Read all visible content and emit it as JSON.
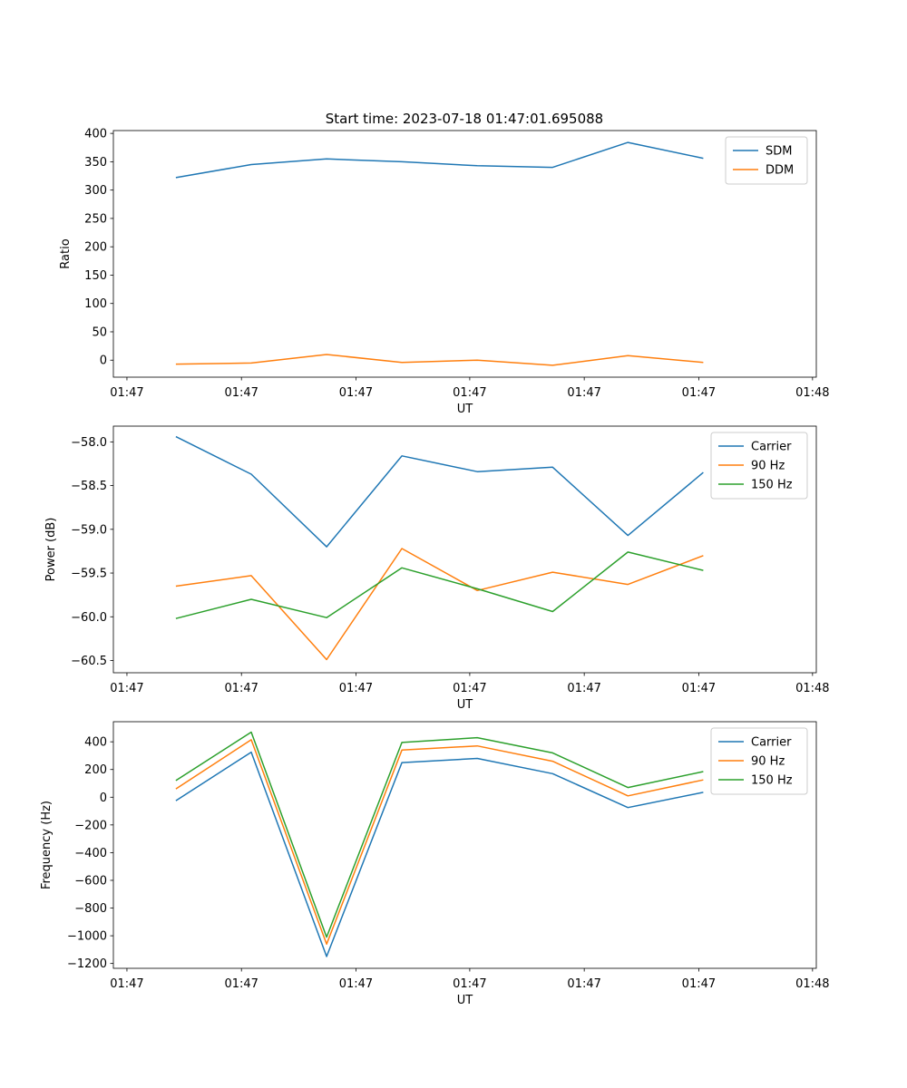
{
  "title": "Start time: 2023-07-18 01:47:01.695088",
  "colors": {
    "blue": "#1f77b4",
    "orange": "#ff7f0e",
    "green": "#2ca02c",
    "axis": "#000000",
    "legend_border": "#cccccc"
  },
  "chart_data": [
    {
      "type": "line",
      "title": "Start time: 2023-07-18 01:47:01.695088",
      "xlabel": "UT",
      "ylabel": "Ratio",
      "x": [
        1,
        2,
        3,
        4,
        5,
        6,
        7,
        8
      ],
      "xlim": [
        0.17,
        9.5
      ],
      "ylim": [
        -30,
        405
      ],
      "yticks": [
        0,
        50,
        100,
        150,
        200,
        250,
        300,
        350,
        400
      ],
      "ytick_labels": [
        "0",
        "50",
        "100",
        "150",
        "200",
        "250",
        "300",
        "350",
        "400"
      ],
      "xticks": [
        0.35,
        1.87,
        3.39,
        4.9,
        6.42,
        7.94,
        9.45
      ],
      "xtick_labels": [
        "01:47",
        "01:47",
        "01:47",
        "01:47",
        "01:47",
        "01:47",
        "01:48"
      ],
      "legend_position": "upper right",
      "series": [
        {
          "name": "SDM",
          "color": "#1f77b4",
          "values": [
            322,
            345,
            355,
            350,
            343,
            340,
            384,
            356
          ]
        },
        {
          "name": "DDM",
          "color": "#ff7f0e",
          "values": [
            -7,
            -5,
            10,
            -4,
            0,
            -9,
            8,
            -4
          ]
        }
      ]
    },
    {
      "type": "line",
      "title": "",
      "xlabel": "UT",
      "ylabel": "Power (dB)",
      "x": [
        1,
        2,
        3,
        4,
        5,
        6,
        7,
        8
      ],
      "xlim": [
        0.17,
        9.5
      ],
      "ylim": [
        -60.64,
        -57.82
      ],
      "yticks": [
        -60.5,
        -60.0,
        -59.5,
        -59.0,
        -58.5,
        -58.0
      ],
      "ytick_labels": [
        "−60.5",
        "−60.0",
        "−59.5",
        "−59.0",
        "−58.5",
        "−58.0"
      ],
      "xticks": [
        0.35,
        1.87,
        3.39,
        4.9,
        6.42,
        7.94,
        9.45
      ],
      "xtick_labels": [
        "01:47",
        "01:47",
        "01:47",
        "01:47",
        "01:47",
        "01:47",
        "01:48"
      ],
      "legend_position": "upper right",
      "series": [
        {
          "name": "Carrier",
          "color": "#1f77b4",
          "values": [
            -57.94,
            -58.37,
            -59.2,
            -58.16,
            -58.34,
            -58.29,
            -59.07,
            -58.35
          ]
        },
        {
          "name": "90 Hz",
          "color": "#ff7f0e",
          "values": [
            -59.65,
            -59.53,
            -60.49,
            -59.22,
            -59.7,
            -59.49,
            -59.63,
            -59.3
          ]
        },
        {
          "name": "150 Hz",
          "color": "#2ca02c",
          "values": [
            -60.02,
            -59.8,
            -60.01,
            -59.44,
            -59.68,
            -59.94,
            -59.26,
            -59.47
          ]
        }
      ]
    },
    {
      "type": "line",
      "title": "",
      "xlabel": "UT",
      "ylabel": "Frequency (Hz)",
      "x": [
        1,
        2,
        3,
        4,
        5,
        6,
        7,
        8
      ],
      "xlim": [
        0.17,
        9.5
      ],
      "ylim": [
        -1235,
        545
      ],
      "yticks": [
        -1200,
        -1000,
        -800,
        -600,
        -400,
        -200,
        0,
        200,
        400
      ],
      "ytick_labels": [
        "−1200",
        "−1000",
        "−800",
        "−600",
        "−400",
        "−200",
        "0",
        "200",
        "400"
      ],
      "xticks": [
        0.35,
        1.87,
        3.39,
        4.9,
        6.42,
        7.94,
        9.45
      ],
      "xtick_labels": [
        "01:47",
        "01:47",
        "01:47",
        "01:47",
        "01:47",
        "01:47",
        "01:48"
      ],
      "legend_position": "upper right",
      "series": [
        {
          "name": "Carrier",
          "color": "#1f77b4",
          "values": [
            -25,
            325,
            -1150,
            250,
            280,
            170,
            -75,
            35
          ]
        },
        {
          "name": "90 Hz",
          "color": "#ff7f0e",
          "values": [
            60,
            415,
            -1060,
            340,
            370,
            260,
            10,
            125
          ]
        },
        {
          "name": "150 Hz",
          "color": "#2ca02c",
          "values": [
            120,
            470,
            -1010,
            395,
            430,
            320,
            70,
            185
          ]
        }
      ]
    }
  ]
}
